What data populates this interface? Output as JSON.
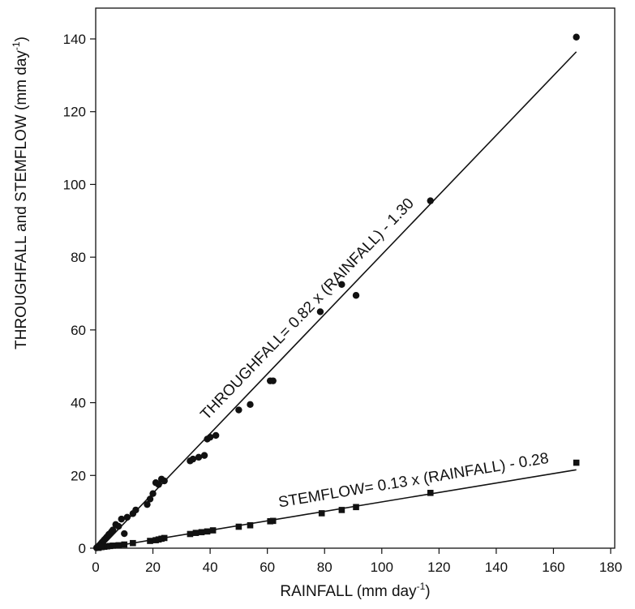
{
  "chart_data": {
    "type": "scatter",
    "xlabel": "RAINFALL (mm day",
    "xlabel_sup": "-1",
    "xlabel_end": ")",
    "ylabel": "THROUGHFALL and STEMFLOW (mm day",
    "ylabel_sup": "-1",
    "ylabel_end": ")",
    "xlim": [
      0,
      180
    ],
    "ylim": [
      0,
      150
    ],
    "xticks": [
      0,
      20,
      40,
      60,
      80,
      100,
      120,
      140,
      160,
      180
    ],
    "yticks": [
      0,
      20,
      40,
      60,
      80,
      100,
      120,
      140
    ],
    "grid": false,
    "series": [
      {
        "marker": "circle",
        "x": [
          0.3,
          0.6,
          1.0,
          1.3,
          1.8,
          2.2,
          2.6,
          3.0,
          3.4,
          3.8,
          4.2,
          4.6,
          5.0,
          5.5,
          6.0,
          7.0,
          8.0,
          9.0,
          10.0,
          11.0,
          13.0,
          14.0,
          18.0,
          19.0,
          20.0,
          21.0,
          22.0,
          23.0,
          24.0,
          33.0,
          34.0,
          36.0,
          38.0,
          39.0,
          40.0,
          42.0,
          50.0,
          54.0,
          61.0,
          62.0,
          78.5,
          86.0,
          91.0,
          117.0,
          168.0
        ],
        "y": [
          0.1,
          0.3,
          0.5,
          0.8,
          1.2,
          1.6,
          1.9,
          2.3,
          2.6,
          3.0,
          3.3,
          3.8,
          4.0,
          4.5,
          5.0,
          6.5,
          6.0,
          8.0,
          4.0,
          8.5,
          9.5,
          10.5,
          12.0,
          13.5,
          15.0,
          18.0,
          17.5,
          19.0,
          18.5,
          24.0,
          24.5,
          25.0,
          25.5,
          30.0,
          30.5,
          31.0,
          38.0,
          39.5,
          46.0,
          46.0,
          65.0,
          72.5,
          69.5,
          95.5,
          140.5
        ],
        "fit": {
          "slope": 0.82,
          "intercept": -1.3,
          "x_range": [
            1.6,
            168
          ]
        },
        "equation_label": "THROUGHFALL= 0.82 x (RAINFALL) - 1.30"
      },
      {
        "marker": "square",
        "x": [
          1.0,
          2.0,
          3.0,
          4.0,
          5.0,
          6.0,
          8.0,
          10.0,
          13.0,
          19.0,
          21.0,
          22.0,
          23.0,
          24.0,
          33.0,
          35.0,
          37.0,
          39.0,
          41.0,
          50.0,
          54.0,
          61.0,
          62.0,
          79.0,
          86.0,
          91.0,
          117.0,
          168.0
        ],
        "y": [
          0.1,
          0.3,
          0.4,
          0.5,
          0.6,
          0.7,
          0.8,
          1.0,
          1.4,
          2.0,
          2.2,
          2.4,
          2.6,
          2.8,
          3.9,
          4.2,
          4.4,
          4.6,
          4.9,
          5.9,
          6.3,
          7.4,
          7.5,
          9.6,
          10.5,
          11.3,
          15.2,
          23.5
        ],
        "fit": {
          "slope": 0.13,
          "intercept": -0.28,
          "x_range": [
            2.2,
            168
          ]
        },
        "equation_label": "STEMFLOW= 0.13 x (RAINFALL) - 0.28"
      }
    ]
  }
}
